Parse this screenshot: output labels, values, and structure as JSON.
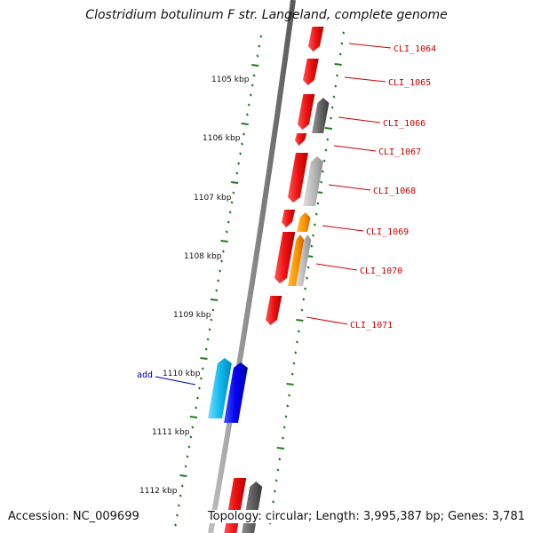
{
  "title": "Clostridium botulinum F str. Langeland, complete genome",
  "footer": {
    "accession": "Accession: NC_009699",
    "summary": "Topology: circular; Length: 3,995,387 bp; Genes: 3,781"
  },
  "colors": {
    "backbone": "#8a8a8a",
    "tick": "#1f7a1f",
    "gene_label": "#cc0000",
    "feature_label": "#0000aa",
    "red_gene": "#ee1111",
    "orange_gene": "#ff9900",
    "dark_gray_gene": "#666666",
    "light_gray_gene": "#bbbbbb",
    "blue_gene": "#0000ee",
    "cyan_gene": "#11bbee"
  },
  "scale_labels": [
    "1105 kbp",
    "1106 kbp",
    "1107 kbp",
    "1108 kbp",
    "1109 kbp",
    "1110 kbp",
    "1111 kbp",
    "1112 kbp"
  ],
  "gene_labels": [
    "CLI_1064",
    "CLI_1065",
    "CLI_1066",
    "CLI_1067",
    "CLI_1068",
    "CLI_1069",
    "CLI_1070",
    "CLI_1071"
  ],
  "feature_labels": [
    "add"
  ]
}
